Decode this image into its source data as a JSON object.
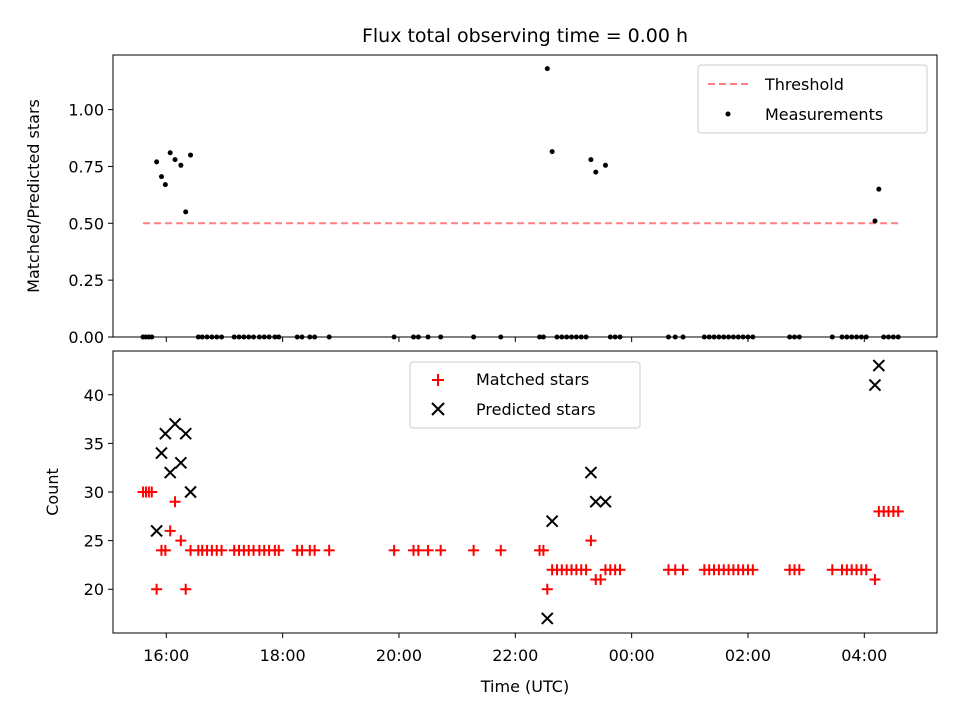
{
  "chart_data": [
    {
      "type": "scatter",
      "title": "Flux total observing time = 0.00 h",
      "ylabel": "Matched/Predicted stars",
      "xlabel": "",
      "xlim": [
        "15:05",
        "05:15"
      ],
      "ylim": [
        0,
        1.24
      ],
      "yticks": [
        "0.00",
        "0.25",
        "0.50",
        "0.75",
        "1.00"
      ],
      "xticks": [
        "16:00",
        "18:00",
        "20:00",
        "22:00",
        "00:00",
        "02:00",
        "04:00"
      ],
      "grid": false,
      "legend_position": "top-right",
      "threshold": {
        "name": "Threshold",
        "value": 0.5,
        "x_start": "15:36",
        "x_end": "04:37",
        "color": "#ff7f7f"
      },
      "series": [
        {
          "name": "Measurements",
          "color": "#000000",
          "points": [
            [
              "15:36",
              0.0
            ],
            [
              "15:39",
              0.0
            ],
            [
              "15:42",
              0.0
            ],
            [
              "15:45",
              0.0
            ],
            [
              "15:50",
              0.77
            ],
            [
              "15:55",
              0.705
            ],
            [
              "15:59",
              0.67
            ],
            [
              "16:04",
              0.81
            ],
            [
              "16:09",
              0.78
            ],
            [
              "16:15",
              0.755
            ],
            [
              "16:20",
              0.55
            ],
            [
              "16:25",
              0.8
            ],
            [
              "16:33",
              0.0
            ],
            [
              "16:37",
              0.0
            ],
            [
              "16:42",
              0.0
            ],
            [
              "16:47",
              0.0
            ],
            [
              "16:52",
              0.0
            ],
            [
              "16:57",
              0.0
            ],
            [
              "17:10",
              0.0
            ],
            [
              "17:15",
              0.0
            ],
            [
              "17:20",
              0.0
            ],
            [
              "17:25",
              0.0
            ],
            [
              "17:30",
              0.0
            ],
            [
              "17:36",
              0.0
            ],
            [
              "17:41",
              0.0
            ],
            [
              "17:46",
              0.0
            ],
            [
              "17:52",
              0.0
            ],
            [
              "17:56",
              0.0
            ],
            [
              "18:15",
              0.0
            ],
            [
              "18:20",
              0.0
            ],
            [
              "18:28",
              0.0
            ],
            [
              "18:33",
              0.0
            ],
            [
              "18:48",
              0.0
            ],
            [
              "19:55",
              0.0
            ],
            [
              "20:15",
              0.0
            ],
            [
              "20:20",
              0.0
            ],
            [
              "20:30",
              0.0
            ],
            [
              "20:43",
              0.0
            ],
            [
              "21:17",
              0.0
            ],
            [
              "21:45",
              0.0
            ],
            [
              "22:25",
              0.0
            ],
            [
              "22:29",
              0.0
            ],
            [
              "22:33",
              1.18
            ],
            [
              "22:38",
              0.815
            ],
            [
              "22:43",
              0.0
            ],
            [
              "22:48",
              0.0
            ],
            [
              "22:53",
              0.0
            ],
            [
              "22:58",
              0.0
            ],
            [
              "23:03",
              0.0
            ],
            [
              "23:08",
              0.0
            ],
            [
              "23:13",
              0.0
            ],
            [
              "23:18",
              0.78
            ],
            [
              "23:23",
              0.725
            ],
            [
              "23:33",
              0.755
            ],
            [
              "23:38",
              0.0
            ],
            [
              "23:43",
              0.0
            ],
            [
              "23:48",
              0.0
            ],
            [
              "00:38",
              0.0
            ],
            [
              "00:45",
              0.0
            ],
            [
              "00:53",
              0.0
            ],
            [
              "01:15",
              0.0
            ],
            [
              "01:20",
              0.0
            ],
            [
              "01:25",
              0.0
            ],
            [
              "01:30",
              0.0
            ],
            [
              "01:35",
              0.0
            ],
            [
              "01:40",
              0.0
            ],
            [
              "01:45",
              0.0
            ],
            [
              "01:50",
              0.0
            ],
            [
              "01:55",
              0.0
            ],
            [
              "02:00",
              0.0
            ],
            [
              "02:05",
              0.0
            ],
            [
              "02:43",
              0.0
            ],
            [
              "02:48",
              0.0
            ],
            [
              "02:53",
              0.0
            ],
            [
              "03:27",
              0.0
            ],
            [
              "03:37",
              0.0
            ],
            [
              "03:42",
              0.0
            ],
            [
              "03:47",
              0.0
            ],
            [
              "03:52",
              0.0
            ],
            [
              "03:57",
              0.0
            ],
            [
              "04:02",
              0.0
            ],
            [
              "04:11",
              0.51
            ],
            [
              "04:15",
              0.65
            ],
            [
              "04:20",
              0.0
            ],
            [
              "04:25",
              0.0
            ],
            [
              "04:30",
              0.0
            ],
            [
              "04:35",
              0.0
            ]
          ]
        }
      ]
    },
    {
      "type": "scatter",
      "title": "",
      "ylabel": "Count",
      "xlabel": "Time (UTC)",
      "xlim": [
        "15:05",
        "05:15"
      ],
      "ylim": [
        15.5,
        44.5
      ],
      "yticks": [
        "20",
        "25",
        "30",
        "35",
        "40"
      ],
      "xticks": [
        "16:00",
        "18:00",
        "20:00",
        "22:00",
        "00:00",
        "02:00",
        "04:00"
      ],
      "grid": false,
      "legend_position": "top-center",
      "series": [
        {
          "name": "Matched stars",
          "marker": "+",
          "color": "#ff0000",
          "points": [
            [
              "15:36",
              30
            ],
            [
              "15:39",
              30
            ],
            [
              "15:42",
              30
            ],
            [
              "15:45",
              30
            ],
            [
              "15:50",
              20
            ],
            [
              "15:55",
              24
            ],
            [
              "15:59",
              24
            ],
            [
              "16:04",
              26
            ],
            [
              "16:09",
              29
            ],
            [
              "16:15",
              25
            ],
            [
              "16:20",
              20
            ],
            [
              "16:25",
              24
            ],
            [
              "16:33",
              24
            ],
            [
              "16:37",
              24
            ],
            [
              "16:42",
              24
            ],
            [
              "16:47",
              24
            ],
            [
              "16:52",
              24
            ],
            [
              "16:57",
              24
            ],
            [
              "17:10",
              24
            ],
            [
              "17:15",
              24
            ],
            [
              "17:20",
              24
            ],
            [
              "17:25",
              24
            ],
            [
              "17:30",
              24
            ],
            [
              "17:36",
              24
            ],
            [
              "17:41",
              24
            ],
            [
              "17:46",
              24
            ],
            [
              "17:52",
              24
            ],
            [
              "17:56",
              24
            ],
            [
              "18:15",
              24
            ],
            [
              "18:20",
              24
            ],
            [
              "18:28",
              24
            ],
            [
              "18:33",
              24
            ],
            [
              "18:48",
              24
            ],
            [
              "19:55",
              24
            ],
            [
              "20:15",
              24
            ],
            [
              "20:20",
              24
            ],
            [
              "20:30",
              24
            ],
            [
              "20:43",
              24
            ],
            [
              "21:17",
              24
            ],
            [
              "21:45",
              24
            ],
            [
              "22:25",
              24
            ],
            [
              "22:29",
              24
            ],
            [
              "22:33",
              20
            ],
            [
              "22:38",
              22
            ],
            [
              "22:43",
              22
            ],
            [
              "22:48",
              22
            ],
            [
              "22:53",
              22
            ],
            [
              "22:58",
              22
            ],
            [
              "23:03",
              22
            ],
            [
              "23:08",
              22
            ],
            [
              "23:13",
              22
            ],
            [
              "23:18",
              25
            ],
            [
              "23:23",
              21
            ],
            [
              "23:28",
              21
            ],
            [
              "23:33",
              22
            ],
            [
              "23:38",
              22
            ],
            [
              "23:43",
              22
            ],
            [
              "23:48",
              22
            ],
            [
              "00:38",
              22
            ],
            [
              "00:45",
              22
            ],
            [
              "00:53",
              22
            ],
            [
              "01:15",
              22
            ],
            [
              "01:20",
              22
            ],
            [
              "01:25",
              22
            ],
            [
              "01:30",
              22
            ],
            [
              "01:35",
              22
            ],
            [
              "01:40",
              22
            ],
            [
              "01:45",
              22
            ],
            [
              "01:50",
              22
            ],
            [
              "01:55",
              22
            ],
            [
              "02:00",
              22
            ],
            [
              "02:05",
              22
            ],
            [
              "02:43",
              22
            ],
            [
              "02:48",
              22
            ],
            [
              "02:53",
              22
            ],
            [
              "03:27",
              22
            ],
            [
              "03:37",
              22
            ],
            [
              "03:42",
              22
            ],
            [
              "03:47",
              22
            ],
            [
              "03:52",
              22
            ],
            [
              "03:57",
              22
            ],
            [
              "04:02",
              22
            ],
            [
              "04:11",
              21
            ],
            [
              "04:15",
              28
            ],
            [
              "04:20",
              28
            ],
            [
              "04:25",
              28
            ],
            [
              "04:30",
              28
            ],
            [
              "04:35",
              28
            ]
          ]
        },
        {
          "name": "Predicted stars",
          "marker": "x",
          "color": "#000000",
          "points": [
            [
              "15:50",
              26
            ],
            [
              "15:55",
              34
            ],
            [
              "15:59",
              36
            ],
            [
              "16:04",
              32
            ],
            [
              "16:09",
              37
            ],
            [
              "16:15",
              33
            ],
            [
              "16:20",
              36
            ],
            [
              "16:25",
              30
            ],
            [
              "22:33",
              17
            ],
            [
              "22:38",
              27
            ],
            [
              "23:18",
              32
            ],
            [
              "23:23",
              29
            ],
            [
              "23:33",
              29
            ],
            [
              "04:11",
              41
            ],
            [
              "04:15",
              43
            ]
          ]
        }
      ]
    }
  ]
}
